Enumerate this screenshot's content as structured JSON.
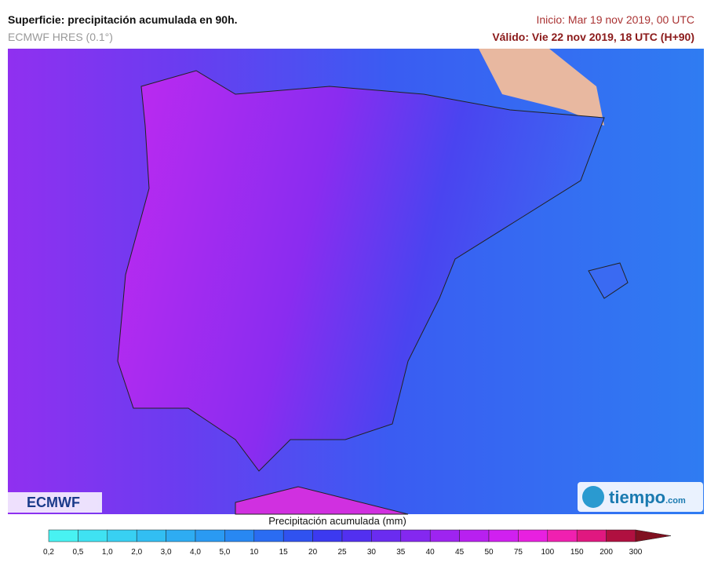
{
  "header": {
    "title": "Superficie: precipitación acumulada en 90h.",
    "model": "ECMWF HRES (0.1°)",
    "init": "Inicio: Mar 19 nov 2019, 00 UTC",
    "valid": "Válido: Vie 22 nov 2019, 18 UTC (H+90)"
  },
  "logos": {
    "left": "ECMWF",
    "right": "tiempo",
    "right_suffix": ".com"
  },
  "legend": {
    "title": "Precipitación acumulada (mm)",
    "labels": [
      "0,2",
      "0,5",
      "1,0",
      "2,0",
      "3,0",
      "4,0",
      "5,0",
      "10",
      "15",
      "20",
      "25",
      "30",
      "35",
      "40",
      "45",
      "50",
      "75",
      "100",
      "150",
      "200",
      "300"
    ],
    "colors": [
      "#48f2f2",
      "#3fe2f2",
      "#38d0f2",
      "#32bef2",
      "#2eacf2",
      "#2a9af2",
      "#2888f2",
      "#2a6cf2",
      "#3052f0",
      "#3c3af0",
      "#5230f0",
      "#6a2cf0",
      "#8428f0",
      "#9e24f0",
      "#b820f0",
      "#d020f0",
      "#e820e0",
      "#f020b0",
      "#e01880",
      "#b01040",
      "#801020"
    ]
  }
}
